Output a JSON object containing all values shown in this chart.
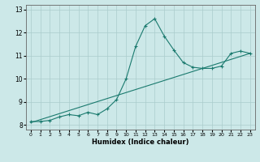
{
  "title": "",
  "xlabel": "Humidex (Indice chaleur)",
  "bg_color": "#cce8e8",
  "grid_color": "#aacccc",
  "line_color": "#1a7a6e",
  "xlim": [
    -0.5,
    23.5
  ],
  "ylim": [
    7.8,
    13.2
  ],
  "xticks": [
    0,
    1,
    2,
    3,
    4,
    5,
    6,
    7,
    8,
    9,
    10,
    11,
    12,
    13,
    14,
    15,
    16,
    17,
    18,
    19,
    20,
    21,
    22,
    23
  ],
  "yticks": [
    8,
    9,
    10,
    11,
    12,
    13
  ],
  "series1_x": [
    0,
    1,
    2,
    3,
    4,
    5,
    6,
    7,
    8,
    9,
    10,
    11,
    12,
    13,
    14,
    15,
    16,
    17,
    18,
    19,
    20,
    21,
    22,
    23
  ],
  "series1_y": [
    8.15,
    8.15,
    8.2,
    8.35,
    8.45,
    8.4,
    8.55,
    8.45,
    8.7,
    9.1,
    10.0,
    11.4,
    12.3,
    12.6,
    11.85,
    11.25,
    10.7,
    10.5,
    10.45,
    10.45,
    10.55,
    11.1,
    11.2,
    11.1
  ],
  "series2_x": [
    0,
    23
  ],
  "series2_y": [
    8.1,
    11.1
  ]
}
